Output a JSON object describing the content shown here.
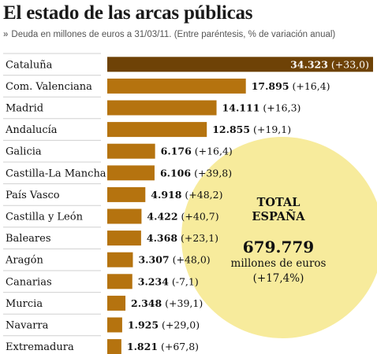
{
  "header": {
    "title": "El estado de las arcas públicas",
    "subtitle_marker": "»",
    "subtitle": "Deuda en millones de euros a 31/03/11. (Entre paréntesis, % de variación anual)"
  },
  "total": {
    "line1": "TOTAL",
    "line2": "ESPAÑA",
    "value": "679.779",
    "unit": "millones de euros",
    "change": "(+17,4%)"
  },
  "colors": {
    "bar": "#b5730f",
    "bar_highlight": "#6e4206",
    "bubble": "#f7eb9c",
    "row_line": "#d0d0d0"
  },
  "chart_data": {
    "type": "bar",
    "orientation": "horizontal",
    "title": "El estado de las arcas públicas",
    "subtitle": "Deuda en millones de euros a 31/03/11. (Entre paréntesis, % de variación anual)",
    "categories": [
      "Cataluña",
      "Com. Valenciana",
      "Madrid",
      "Andalucía",
      "Galicia",
      "Castilla-La Mancha",
      "País Vasco",
      "Castilla y León",
      "Baleares",
      "Aragón",
      "Canarias",
      "Murcia",
      "Navarra",
      "Extremadura"
    ],
    "values": [
      34323,
      17895,
      14111,
      12855,
      6176,
      6106,
      4918,
      4422,
      4368,
      3307,
      3234,
      2348,
      1925,
      1821
    ],
    "value_labels": [
      "34.323",
      "17.895",
      "14.111",
      "12.855",
      "6.176",
      "6.106",
      "4.918",
      "4.422",
      "4.368",
      "3.307",
      "3.234",
      "2.348",
      "1.925",
      "1.821"
    ],
    "change_labels": [
      "(+33,0)",
      "(+16,4)",
      "(+16,3)",
      "(+19,1)",
      "(+16,4)",
      "(+39,8)",
      "(+48,2)",
      "(+40,7)",
      "(+23,1)",
      "(+48,0)",
      "(-7,1)",
      "(+39,1)",
      "(+29,0)",
      "(+67,8)"
    ],
    "series": [
      {
        "values": [
          34323,
          17895,
          14111,
          12855,
          6176,
          6106,
          4918,
          4422,
          4368,
          3307,
          3234,
          2348,
          1925,
          1821
        ]
      }
    ],
    "xlim": [
      0,
      34323
    ],
    "grid": false,
    "legend": "none"
  }
}
